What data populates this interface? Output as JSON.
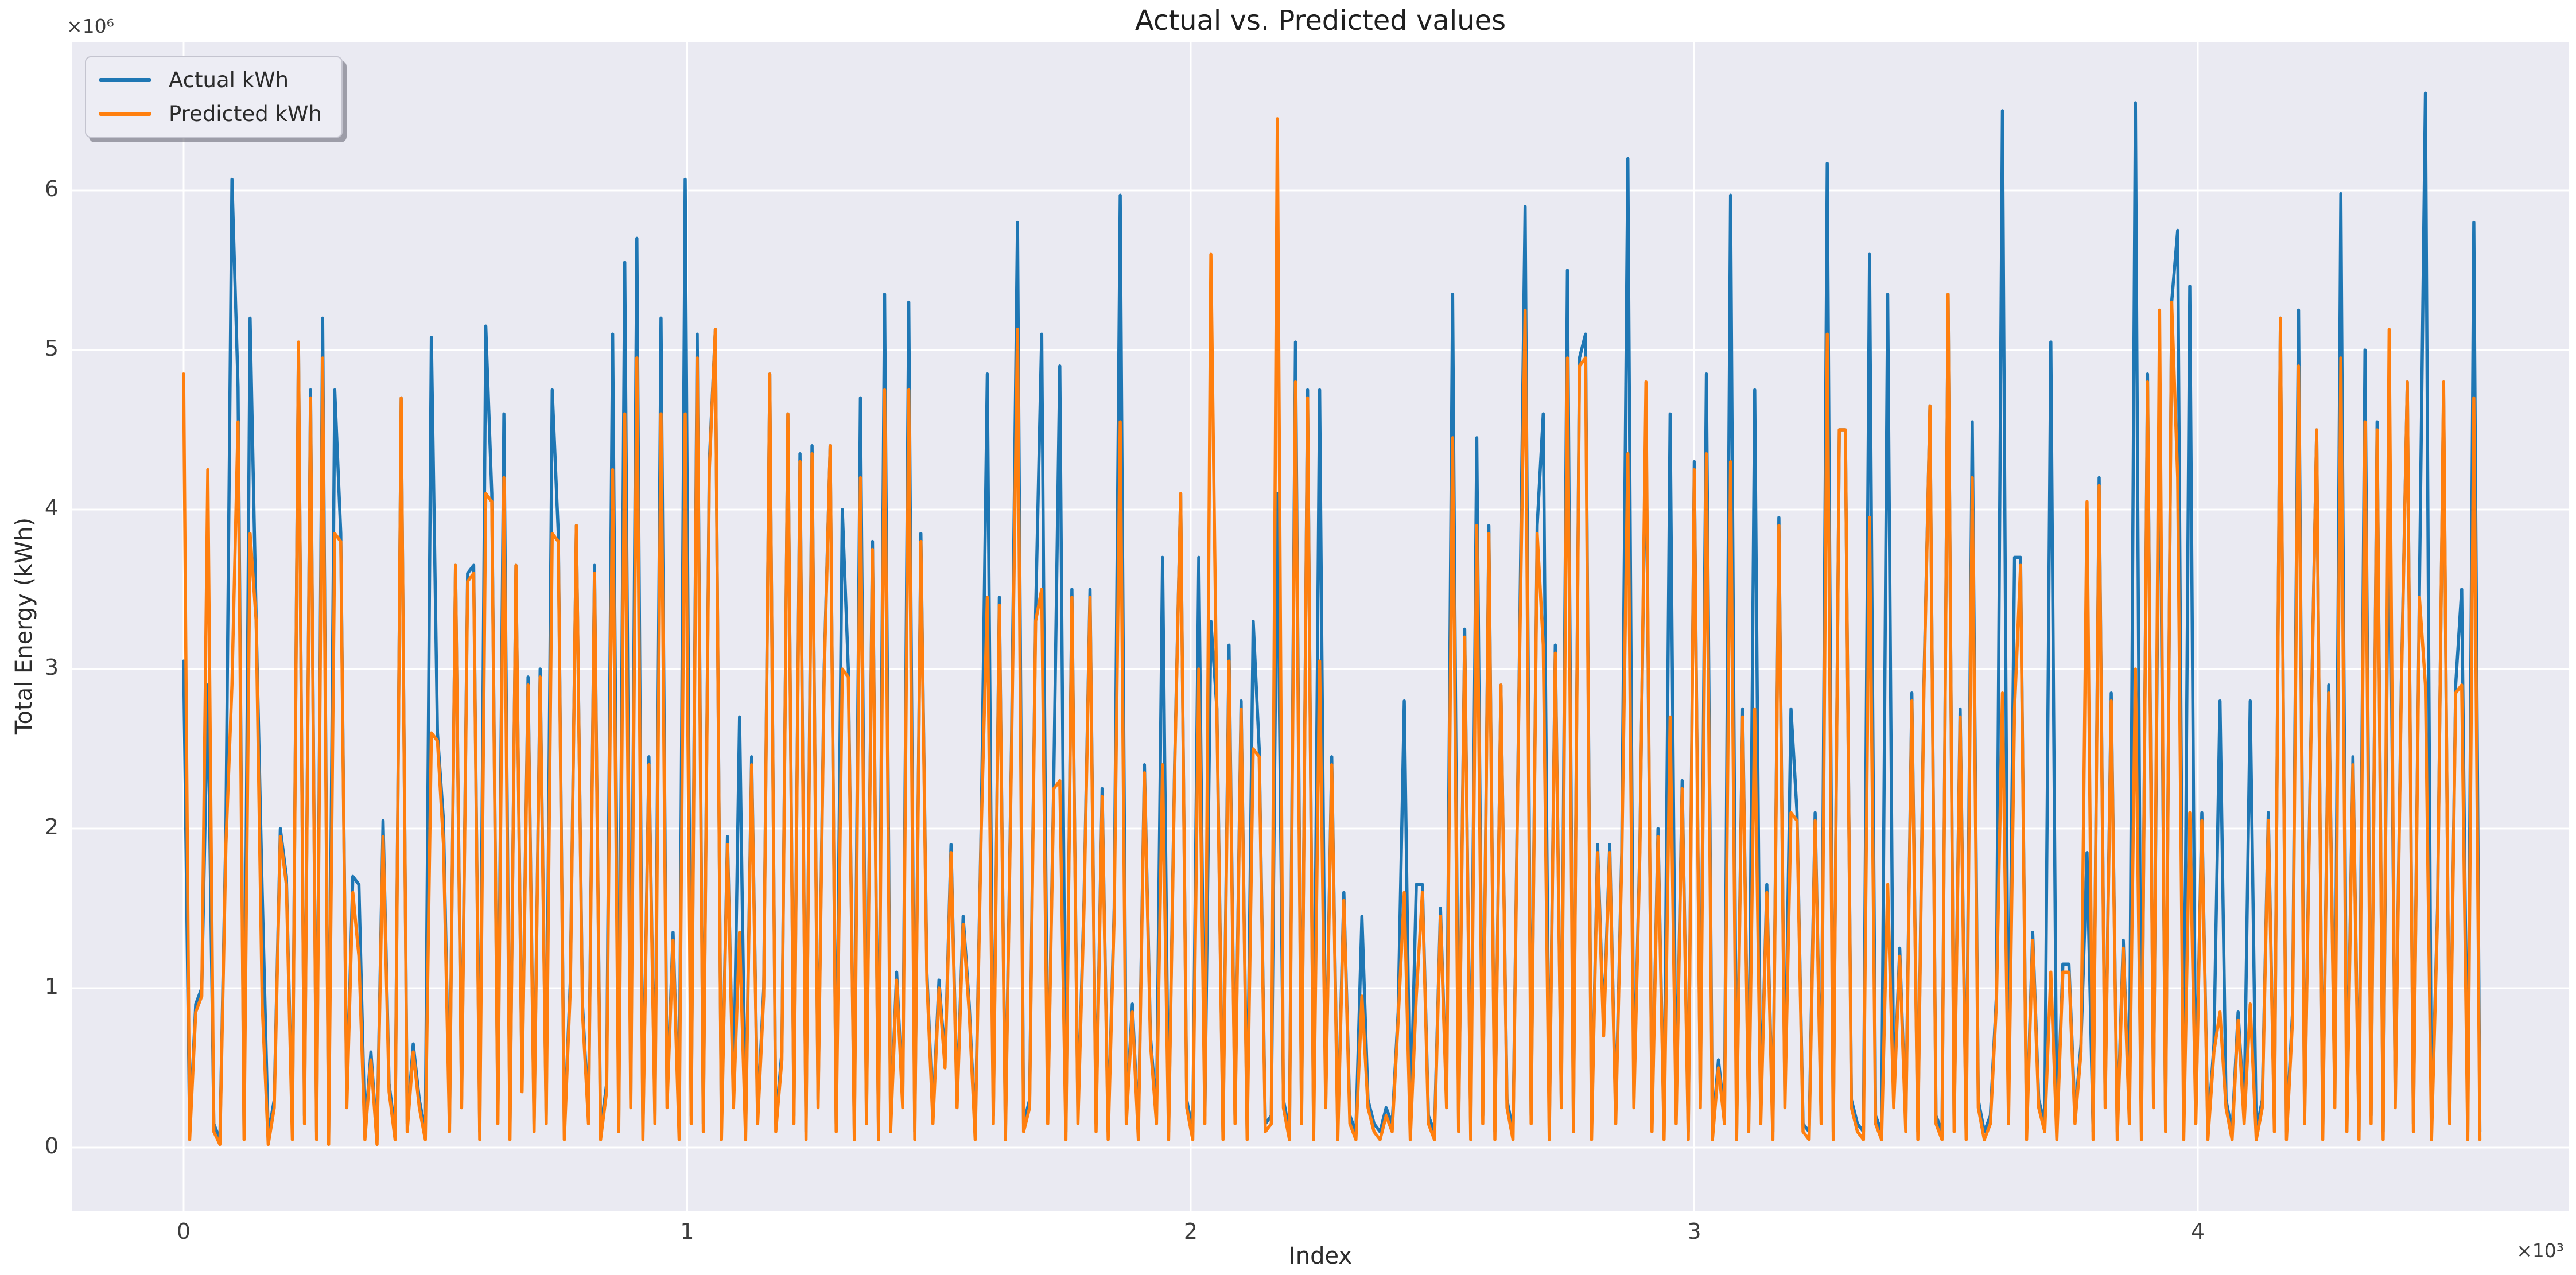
{
  "figure": {
    "title": "Actual vs. Predicted values",
    "background": "#ffffff",
    "axes_background": "#eaeaf2",
    "grid_color": "#ffffff",
    "text_color": "#262626"
  },
  "chart_data": {
    "type": "line",
    "title": "Actual vs. Predicted values",
    "xlabel": "Index",
    "ylabel": "Total Energy (kWh)",
    "y_offset_text": "×10⁶",
    "x_offset_text": "×10³",
    "legend_position": "upper left",
    "grid": true,
    "x_ticks": [
      0,
      1000,
      2000,
      3000,
      4000
    ],
    "x_tick_labels": [
      "0",
      "1",
      "2",
      "3",
      "4"
    ],
    "y_ticks": [
      0,
      1,
      2,
      3,
      4,
      5,
      6
    ],
    "y_tick_labels": [
      "0",
      "1",
      "2",
      "3",
      "4",
      "5",
      "6"
    ],
    "xlim": [
      -222,
      4737
    ],
    "ylim_millions": [
      -0.4,
      6.93
    ],
    "y_unit_multiplier": 1000000,
    "x_range": [
      0,
      4560
    ],
    "x_step": 12,
    "series": [
      {
        "name": "Actual kWh",
        "color": "#1f77b4",
        "values_millions": [
          3.05,
          0.1,
          0.9,
          1.0,
          2.9,
          0.15,
          0.05,
          2.0,
          6.07,
          4.77,
          0.1,
          5.2,
          3.3,
          1.6,
          0.08,
          0.3,
          2.0,
          1.7,
          0.12,
          5.05,
          0.2,
          4.75,
          0.1,
          5.2,
          0.05,
          4.75,
          3.85,
          0.3,
          1.7,
          1.65,
          0.1,
          0.6,
          0.05,
          2.05,
          0.4,
          0.1,
          4.7,
          0.15,
          0.65,
          0.3,
          0.1,
          5.08,
          2.6,
          2.05,
          0.15,
          3.65,
          0.3,
          3.6,
          3.65,
          0.1,
          5.15,
          4.1,
          0.2,
          4.6,
          0.1,
          3.65,
          0.4,
          2.95,
          0.15,
          3.0,
          0.2,
          4.75,
          3.85,
          0.1,
          1.05,
          3.9,
          0.9,
          0.2,
          3.65,
          0.1,
          0.4,
          5.1,
          0.15,
          5.55,
          0.3,
          5.7,
          0.1,
          2.45,
          0.2,
          5.2,
          0.3,
          1.35,
          0.1,
          6.07,
          0.2,
          5.1,
          0.15,
          4.3,
          5.13,
          0.1,
          1.95,
          0.3,
          2.7,
          0.1,
          2.45,
          0.2,
          1.0,
          4.85,
          0.15,
          0.6,
          4.6,
          0.2,
          4.35,
          0.1,
          4.4,
          0.3,
          3.0,
          4.4,
          0.15,
          4.0,
          3.0,
          0.1,
          4.7,
          0.2,
          3.8,
          0.1,
          5.35,
          0.15,
          1.1,
          0.3,
          5.3,
          0.1,
          3.85,
          1.1,
          0.2,
          1.05,
          0.55,
          1.9,
          0.3,
          1.45,
          0.9,
          0.1,
          2.05,
          4.85,
          0.2,
          3.45,
          0.1,
          2.5,
          5.8,
          0.15,
          0.3,
          3.35,
          5.1,
          0.2,
          2.3,
          4.9,
          0.1,
          3.5,
          0.2,
          1.55,
          3.5,
          0.15,
          2.25,
          0.1,
          1.5,
          5.97,
          0.2,
          0.9,
          0.1,
          2.4,
          0.7,
          0.2,
          3.7,
          0.1,
          2.4,
          4.1,
          0.3,
          0.1,
          3.7,
          0.2,
          3.3,
          2.75,
          0.1,
          3.15,
          0.2,
          2.8,
          0.1,
          3.3,
          2.5,
          0.15,
          0.2,
          4.1,
          0.3,
          0.1,
          5.05,
          0.2,
          4.75,
          0.1,
          4.75,
          0.3,
          2.45,
          0.1,
          1.6,
          0.2,
          0.1,
          1.45,
          0.3,
          0.15,
          0.1,
          0.25,
          0.15,
          0.85,
          2.8,
          0.1,
          1.65,
          1.65,
          0.2,
          0.1,
          1.5,
          0.3,
          5.35,
          0.15,
          3.25,
          0.1,
          4.45,
          0.2,
          3.9,
          0.1,
          2.9,
          0.3,
          0.1,
          2.9,
          5.9,
          0.2,
          3.9,
          4.6,
          0.1,
          3.15,
          0.3,
          5.5,
          0.15,
          4.95,
          5.1,
          0.1,
          1.9,
          0.75,
          1.9,
          0.2,
          1.85,
          6.2,
          0.3,
          1.9,
          4.65,
          0.15,
          2.0,
          0.1,
          4.6,
          0.2,
          2.3,
          0.1,
          4.3,
          0.3,
          4.85,
          0.1,
          0.55,
          0.2,
          5.97,
          0.1,
          2.75,
          0.15,
          4.75,
          0.2,
          1.65,
          0.1,
          3.95,
          0.3,
          2.75,
          2.1,
          0.15,
          0.1,
          2.1,
          0.2,
          6.17,
          0.1,
          4.5,
          4.5,
          0.3,
          0.15,
          0.1,
          5.6,
          0.2,
          0.1,
          5.35,
          0.3,
          1.25,
          0.15,
          2.85,
          0.1,
          2.9,
          4.65,
          0.2,
          0.1,
          5.35,
          0.15,
          2.75,
          0.1,
          4.55,
          0.3,
          0.1,
          0.2,
          0.95,
          6.5,
          0.2,
          3.7,
          3.7,
          0.1,
          1.35,
          0.3,
          0.15,
          5.05,
          0.1,
          1.15,
          1.15,
          0.2,
          0.65,
          1.85,
          0.1,
          4.2,
          0.3,
          2.85,
          0.1,
          1.3,
          0.2,
          6.55,
          0.1,
          4.85,
          0.3,
          4.85,
          0.15,
          5.3,
          5.75,
          0.1,
          5.4,
          0.2,
          2.1,
          0.1,
          0.65,
          2.8,
          0.3,
          0.1,
          0.85,
          0.2,
          2.8,
          0.1,
          0.3,
          2.1,
          0.15,
          5.2,
          0.1,
          0.85,
          5.25,
          0.2,
          2.5,
          4.5,
          0.1,
          2.9,
          0.3,
          5.98,
          0.15,
          2.45,
          0.1,
          5.0,
          0.2,
          4.55,
          0.1,
          4.55,
          0.3,
          2.9,
          4.8,
          0.15,
          3.5,
          6.61,
          0.1,
          1.5,
          4.75,
          0.2,
          2.9,
          3.5,
          0.1,
          5.8,
          0.1
        ]
      },
      {
        "name": "Predicted kWh",
        "color": "#ff7f0e",
        "values_millions": [
          4.85,
          0.05,
          0.85,
          0.95,
          4.25,
          0.1,
          0.02,
          1.9,
          2.9,
          4.55,
          0.05,
          3.85,
          3.3,
          0.9,
          0.02,
          0.25,
          1.95,
          1.65,
          0.05,
          5.05,
          0.15,
          4.7,
          0.05,
          4.95,
          0.02,
          3.85,
          3.8,
          0.25,
          1.6,
          1.2,
          0.05,
          0.55,
          0.02,
          1.95,
          0.35,
          0.05,
          4.7,
          0.1,
          0.6,
          0.25,
          0.05,
          2.6,
          2.55,
          1.9,
          0.1,
          3.65,
          0.25,
          3.55,
          3.6,
          0.05,
          4.1,
          4.05,
          0.15,
          4.2,
          0.05,
          3.65,
          0.35,
          2.9,
          0.1,
          2.95,
          0.15,
          3.85,
          3.8,
          0.05,
          1.0,
          3.9,
          0.85,
          0.15,
          3.6,
          0.05,
          0.35,
          4.25,
          0.1,
          4.6,
          0.25,
          4.95,
          0.05,
          2.4,
          0.15,
          4.6,
          0.25,
          1.3,
          0.05,
          4.6,
          0.15,
          4.95,
          0.1,
          4.25,
          5.13,
          0.05,
          1.9,
          0.25,
          1.35,
          0.05,
          2.4,
          0.15,
          0.95,
          4.85,
          0.1,
          0.55,
          4.6,
          0.15,
          4.3,
          0.05,
          4.35,
          0.25,
          2.95,
          4.4,
          0.1,
          3.0,
          2.95,
          0.05,
          4.2,
          0.15,
          3.75,
          0.05,
          4.75,
          0.1,
          1.05,
          0.25,
          4.75,
          0.05,
          3.8,
          1.05,
          0.15,
          1.0,
          0.5,
          1.85,
          0.25,
          1.4,
          0.85,
          0.05,
          2.0,
          3.45,
          0.15,
          3.4,
          0.05,
          2.45,
          5.13,
          0.1,
          0.25,
          3.3,
          3.5,
          0.15,
          2.25,
          2.3,
          0.05,
          3.45,
          0.15,
          1.5,
          3.45,
          0.1,
          2.2,
          0.05,
          1.45,
          4.55,
          0.15,
          0.85,
          0.05,
          2.35,
          0.65,
          0.15,
          2.4,
          0.05,
          2.35,
          4.1,
          0.25,
          0.05,
          3.0,
          0.15,
          5.6,
          2.7,
          0.05,
          3.05,
          0.15,
          2.75,
          0.05,
          2.5,
          2.45,
          0.1,
          0.15,
          6.45,
          0.25,
          0.05,
          4.8,
          0.15,
          4.7,
          0.05,
          3.05,
          0.25,
          2.4,
          0.05,
          1.55,
          0.15,
          0.05,
          0.95,
          0.25,
          0.1,
          0.05,
          0.2,
          0.1,
          0.8,
          1.6,
          0.05,
          0.95,
          1.6,
          0.15,
          0.05,
          1.45,
          0.25,
          4.45,
          0.1,
          3.2,
          0.05,
          3.9,
          0.15,
          3.85,
          0.05,
          2.9,
          0.25,
          0.05,
          2.85,
          5.25,
          0.15,
          3.85,
          3.15,
          0.05,
          3.1,
          0.25,
          4.95,
          0.1,
          4.9,
          4.95,
          0.05,
          1.85,
          0.7,
          1.85,
          0.15,
          1.8,
          4.35,
          0.25,
          1.85,
          4.8,
          0.1,
          1.95,
          0.05,
          2.7,
          0.15,
          2.25,
          0.05,
          4.25,
          0.25,
          4.35,
          0.05,
          0.5,
          0.15,
          4.3,
          0.05,
          2.7,
          0.1,
          2.75,
          0.15,
          1.6,
          0.05,
          3.9,
          0.25,
          2.1,
          2.05,
          0.1,
          0.05,
          2.05,
          0.15,
          5.1,
          0.05,
          4.5,
          4.5,
          0.25,
          0.1,
          0.05,
          3.95,
          0.15,
          0.05,
          1.65,
          0.25,
          1.2,
          0.1,
          2.8,
          0.05,
          2.85,
          4.65,
          0.15,
          0.05,
          5.35,
          0.1,
          2.7,
          0.05,
          4.2,
          0.25,
          0.05,
          0.15,
          0.9,
          2.85,
          0.15,
          2.75,
          3.65,
          0.05,
          1.3,
          0.25,
          0.1,
          1.1,
          0.05,
          1.1,
          1.1,
          0.15,
          0.6,
          4.05,
          0.05,
          4.15,
          0.25,
          2.8,
          0.05,
          1.25,
          0.15,
          3.0,
          0.05,
          4.8,
          0.25,
          5.25,
          0.1,
          5.3,
          4.2,
          0.05,
          2.1,
          0.15,
          2.05,
          0.05,
          0.6,
          0.85,
          0.25,
          0.05,
          0.8,
          0.15,
          0.9,
          0.05,
          0.25,
          2.05,
          0.1,
          5.2,
          0.05,
          0.8,
          4.9,
          0.15,
          2.45,
          4.5,
          0.05,
          2.85,
          0.25,
          4.95,
          0.1,
          2.4,
          0.05,
          4.55,
          0.15,
          4.5,
          0.05,
          5.13,
          0.25,
          2.85,
          4.8,
          0.1,
          3.45,
          2.9,
          0.05,
          1.45,
          4.8,
          0.15,
          2.85,
          2.9,
          0.05,
          4.7,
          0.05
        ]
      }
    ]
  }
}
